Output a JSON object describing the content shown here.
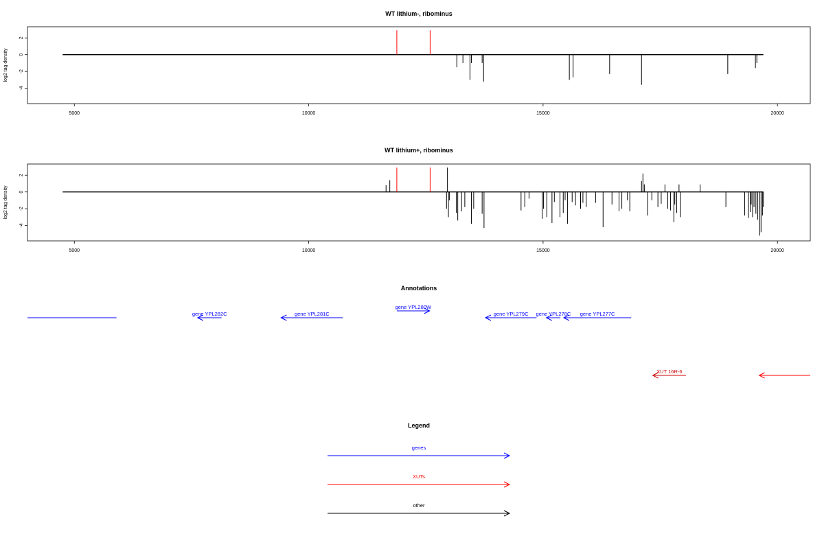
{
  "chart_data": [
    {
      "type": "bar",
      "title": "WT lithium-, ribominus",
      "ylabel": "log2 tag density",
      "xlabel": "",
      "xlim": [
        4000,
        20700
      ],
      "ylim": [
        -5.5,
        3
      ],
      "x_ticks": [
        5000,
        10000,
        15000,
        20000
      ],
      "y_ticks": [
        2,
        0,
        -2,
        -4
      ],
      "baseline": {
        "x_start": 4750,
        "x_end": 19700,
        "y": 0
      },
      "grid": false,
      "series": [
        {
          "color": "#ff0000",
          "x": [
            11880,
            12590
          ],
          "y": [
            2.9,
            2.9
          ]
        },
        {
          "color": "#000000",
          "x": [
            13160,
            13290,
            13440,
            13470,
            13700,
            13730,
            15560,
            15640,
            16420,
            17100,
            18940,
            19530,
            19560
          ],
          "y": [
            -1.5,
            -1.0,
            -3.0,
            -1.0,
            -1.0,
            -3.2,
            -3.0,
            -2.7,
            -2.3,
            -3.6,
            -2.3,
            -1.6,
            -1.0
          ]
        }
      ]
    },
    {
      "type": "bar",
      "title": "WT lithium+, ribominus",
      "ylabel": "log2 tag density",
      "xlabel": "",
      "xlim": [
        4000,
        20700
      ],
      "ylim": [
        -5.5,
        3
      ],
      "x_ticks": [
        5000,
        10000,
        15000,
        20000
      ],
      "y_ticks": [
        2,
        0,
        -2,
        -4
      ],
      "baseline": {
        "x_start": 4750,
        "x_end": 19700,
        "y": 0
      },
      "grid": false,
      "series": [
        {
          "color": "#ff0000",
          "x": [
            11880,
            12590
          ],
          "y": [
            2.9,
            2.9
          ]
        },
        {
          "color": "#000000",
          "x": [
            11650,
            11730,
            12960,
            12980,
            12940,
            13000,
            13150,
            13180,
            13260,
            13330,
            13470,
            13520,
            13700,
            13740,
            14530,
            14610,
            14700,
            14980,
            15010,
            15080,
            15190,
            15240,
            15360,
            15430,
            15470,
            15520,
            15620,
            15690,
            15800,
            15850,
            15920,
            16120,
            16280,
            16470,
            16620,
            16680,
            16800,
            16850,
            17100,
            17130,
            17160,
            17230,
            17320,
            17450,
            17520,
            17600,
            17660,
            17720,
            17790,
            17810,
            17850,
            17900,
            17930,
            18350,
            18900,
            19300,
            19380,
            19420,
            19440,
            19470,
            19500,
            19540,
            19580,
            19620,
            19650,
            19680,
            19700
          ],
          "y": [
            0.8,
            1.4,
            2.9,
            -3.0,
            -2.0,
            -1.0,
            -2.5,
            -3.4,
            -2.3,
            -1.8,
            -3.8,
            -2.0,
            -2.6,
            -4.3,
            -2.2,
            -1.8,
            -0.8,
            -3.2,
            -2.0,
            -3.0,
            -3.7,
            -1.2,
            -3.0,
            -2.5,
            -1.0,
            -3.8,
            -1.2,
            -1.6,
            -2.0,
            -1.3,
            -1.8,
            -1.3,
            -4.2,
            -1.5,
            -2.3,
            -2.0,
            -1.0,
            -2.3,
            1.3,
            2.2,
            0.9,
            -2.8,
            -1.0,
            -1.8,
            -1.4,
            0.9,
            -2.0,
            -2.2,
            -3.6,
            -1.5,
            -2.5,
            0.9,
            -3.0,
            0.9,
            -1.8,
            -2.8,
            -3.1,
            -2.4,
            -1.5,
            -3.0,
            -1.8,
            -2.6,
            -3.3,
            -5.2,
            -4.8,
            -2.8,
            -1.8
          ]
        }
      ]
    }
  ],
  "annotations": {
    "title": "Annotations",
    "features": [
      {
        "label": "",
        "color": "#0000ff",
        "direction": "none",
        "start": 4000,
        "end": 5900,
        "row": 0
      },
      {
        "label": "gene YPL282C",
        "color": "#0000ff",
        "direction": "left",
        "start": 7630,
        "end": 8140,
        "row": 0
      },
      {
        "label": "gene YPL281C",
        "color": "#0000ff",
        "direction": "left",
        "start": 9410,
        "end": 10730,
        "row": 0
      },
      {
        "label": "gene YPL280W",
        "color": "#0000ff",
        "direction": "right",
        "start": 11880,
        "end": 12580,
        "row": 1
      },
      {
        "label": "gene YPL279C",
        "color": "#0000ff",
        "direction": "left",
        "start": 13770,
        "end": 14860,
        "row": 0
      },
      {
        "label": "gene YPL278C",
        "color": "#0000ff",
        "direction": "left",
        "start": 15070,
        "end": 15370,
        "row": 0
      },
      {
        "label": "gene YPL277C",
        "color": "#0000ff",
        "direction": "left",
        "start": 15440,
        "end": 16880,
        "row": 0
      },
      {
        "label": "XUT 16R-6",
        "color": "#cc0000",
        "direction": "left",
        "start": 17340,
        "end": 18050,
        "row": 2
      },
      {
        "label": "",
        "color": "#ff0000",
        "direction": "left",
        "start": 19610,
        "end": 20700,
        "row": 2
      }
    ]
  },
  "legend": {
    "title": "Legend",
    "items": [
      {
        "label": "genes",
        "color": "#0000ff"
      },
      {
        "label": "XUTs",
        "color": "#ff0000"
      },
      {
        "label": "other",
        "color": "#000000"
      }
    ]
  }
}
